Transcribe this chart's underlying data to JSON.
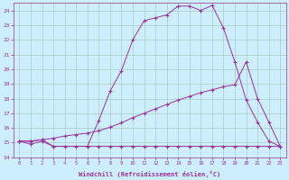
{
  "xlabel": "Windchill (Refroidissement éolien,°C)",
  "background_color": "#cceeff",
  "grid_color": "#aaccbb",
  "line_color": "#993399",
  "xlim": [
    -0.5,
    23.5
  ],
  "ylim": [
    14,
    24.5
  ],
  "yticks": [
    14,
    15,
    16,
    17,
    18,
    19,
    20,
    21,
    22,
    23,
    24
  ],
  "xticks": [
    0,
    1,
    2,
    3,
    4,
    5,
    6,
    7,
    8,
    9,
    10,
    11,
    12,
    13,
    14,
    15,
    16,
    17,
    18,
    19,
    20,
    21,
    22,
    23
  ],
  "line1_x": [
    0,
    1,
    2,
    3,
    4,
    5,
    6,
    7,
    8,
    9,
    10,
    11,
    12,
    13,
    14,
    15,
    16,
    17,
    18,
    19,
    20,
    21,
    22,
    23
  ],
  "line1_y": [
    15.1,
    14.9,
    15.1,
    14.75,
    14.75,
    14.75,
    14.75,
    14.75,
    14.75,
    14.75,
    14.75,
    14.75,
    14.75,
    14.75,
    14.75,
    14.75,
    14.75,
    14.75,
    14.75,
    14.75,
    14.75,
    14.75,
    14.75,
    14.75
  ],
  "line2_x": [
    0,
    1,
    2,
    3,
    4,
    5,
    6,
    7,
    8,
    9,
    10,
    11,
    12,
    13,
    14,
    15,
    16,
    17,
    18,
    19,
    20,
    21,
    22,
    23
  ],
  "line2_y": [
    15.1,
    15.1,
    15.2,
    15.3,
    15.45,
    15.55,
    15.65,
    15.8,
    16.05,
    16.35,
    16.7,
    17.0,
    17.3,
    17.6,
    17.9,
    18.15,
    18.4,
    18.6,
    18.8,
    18.95,
    20.5,
    18.0,
    16.4,
    14.75
  ],
  "line3_x": [
    0,
    1,
    2,
    3,
    6,
    7,
    8,
    9,
    10,
    11,
    12,
    13,
    14,
    15,
    16,
    17,
    18,
    19,
    20,
    21,
    22,
    23
  ],
  "line3_y": [
    15.1,
    15.1,
    15.2,
    14.75,
    14.75,
    16.5,
    18.5,
    19.9,
    22.0,
    23.3,
    23.5,
    23.7,
    24.3,
    24.3,
    24.0,
    24.35,
    22.8,
    20.5,
    17.9,
    16.4,
    15.1,
    14.75
  ]
}
